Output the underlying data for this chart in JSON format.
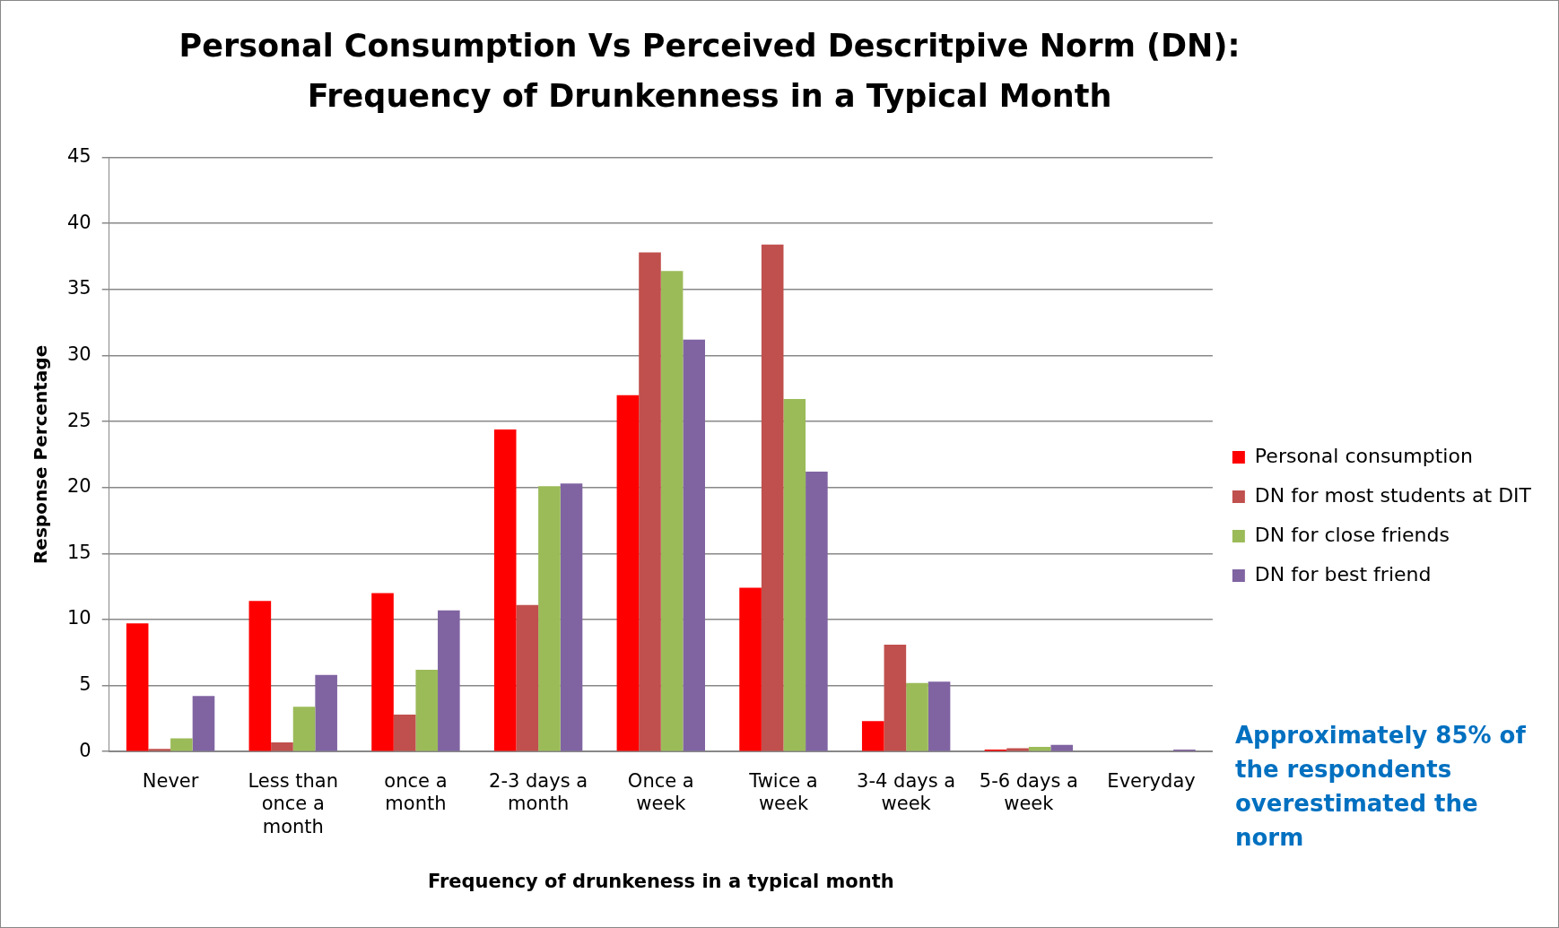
{
  "chart_data": {
    "type": "bar",
    "title": "Personal Consumption Vs Perceived Descritpive Norm (DN): Frequency of Drunkenness in a Typical Month",
    "xlabel": "Frequency of drunkeness in a typical month",
    "ylabel": "Response Percentage",
    "categories": [
      "Never",
      "Less than once a month",
      "once a month",
      "2-3 days a month",
      "Once a week",
      "Twice a week",
      "3-4 days a week",
      "5-6 days a week",
      "Everyday"
    ],
    "series": [
      {
        "name": "Personal consumption",
        "color": "#ff0000",
        "values": [
          9.7,
          11.4,
          12.0,
          24.4,
          27.0,
          12.4,
          2.3,
          0.15,
          0
        ]
      },
      {
        "name": "DN for most students at DIT",
        "color": "#c0504d",
        "values": [
          0.2,
          0.7,
          2.8,
          11.1,
          37.8,
          38.4,
          8.1,
          0.25,
          0
        ]
      },
      {
        "name": "DN for close friends",
        "color": "#9bbb59",
        "values": [
          1.0,
          3.4,
          6.2,
          20.1,
          36.4,
          26.7,
          5.2,
          0.35,
          0
        ]
      },
      {
        "name": "DN for best friend",
        "color": "#8064a2",
        "values": [
          4.2,
          5.8,
          10.7,
          20.3,
          31.2,
          21.2,
          5.3,
          0.5,
          0.15
        ]
      }
    ],
    "ylim": [
      0,
      45
    ],
    "yticks": [
      0,
      5,
      10,
      15,
      20,
      25,
      30,
      35,
      40,
      45
    ],
    "grid": "y",
    "legend": "right",
    "annotations": [
      "Approximately 85% of the respondents overestimated the norm"
    ]
  }
}
